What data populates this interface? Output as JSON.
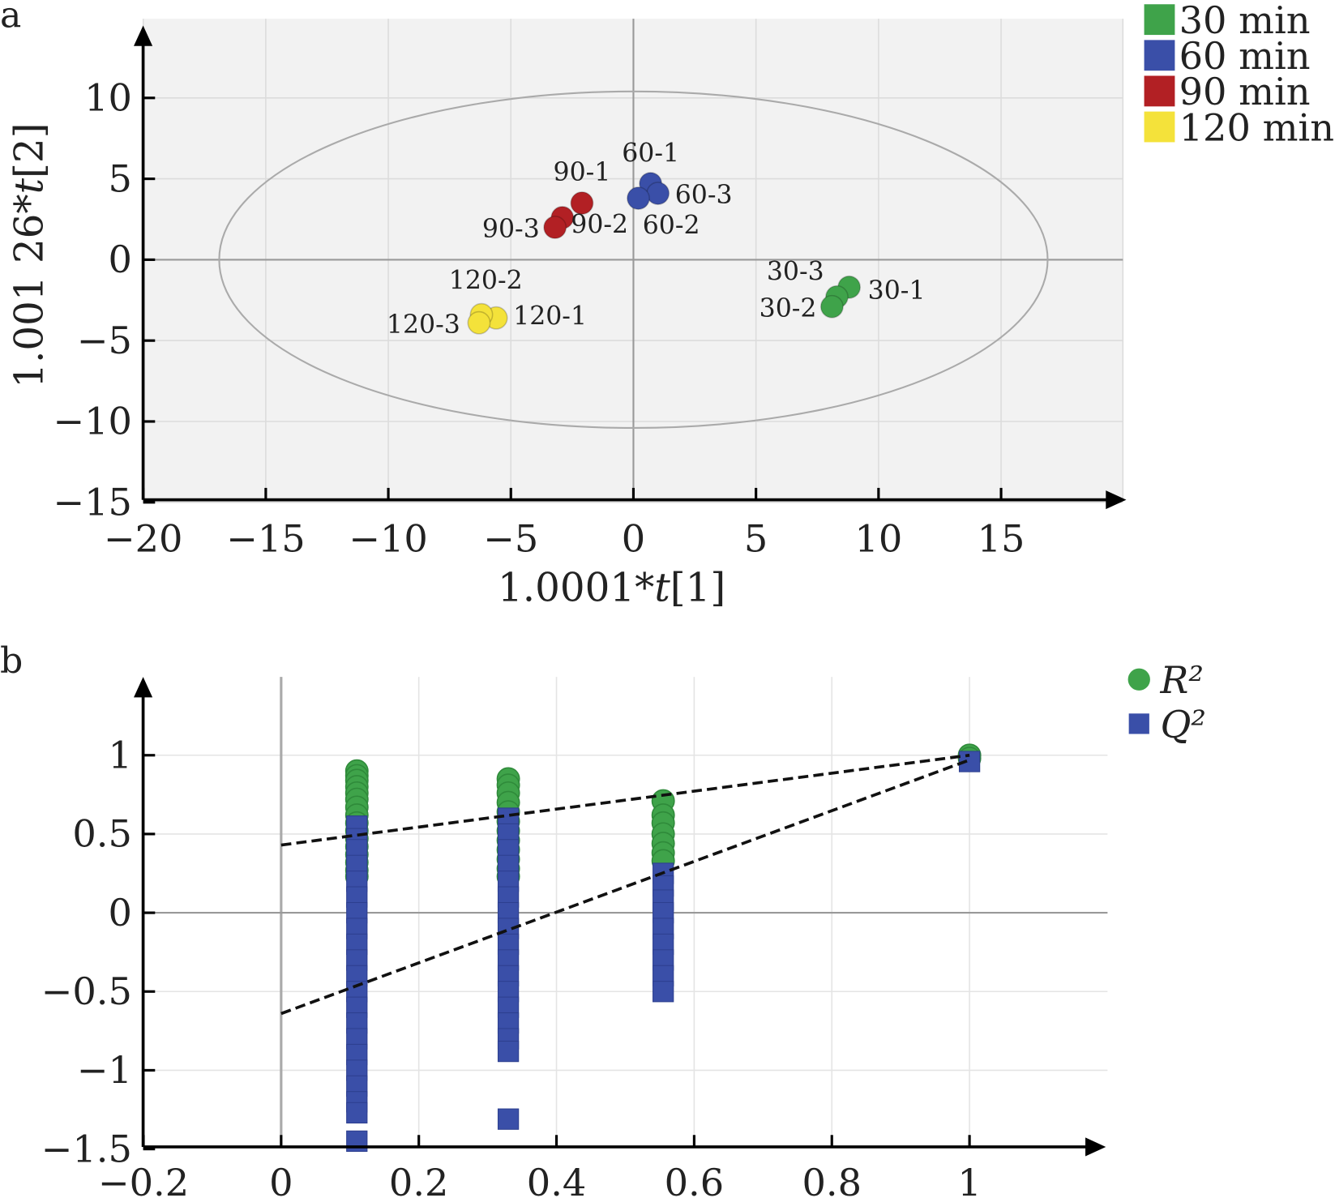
{
  "chart_data": [
    {
      "panel_label": "a",
      "type": "scatter",
      "xlabel_parts": [
        "1.0001*",
        "t",
        "[1]"
      ],
      "ylabel_parts": [
        "1.001 26*",
        "t",
        "[2]"
      ],
      "xlim": [
        -20,
        20
      ],
      "ylim": [
        -15,
        14
      ],
      "xticks": [
        -20,
        -15,
        -10,
        -5,
        0,
        5,
        10,
        15
      ],
      "yticks": [
        -15,
        -10,
        -5,
        0,
        5,
        10
      ],
      "grid": true,
      "background": "#f2f2f2",
      "legend_position": "top-right",
      "ellipse": {
        "center": [
          0,
          0
        ],
        "semi_axes": [
          16.9,
          10.4
        ]
      },
      "series": [
        {
          "name": "30 min",
          "color": "#3fa34a",
          "points": [
            {
              "label": "30-1",
              "x": 8.8,
              "y": -1.7
            },
            {
              "label": "30-3",
              "x": 8.3,
              "y": -2.3
            },
            {
              "label": "30-2",
              "x": 8.1,
              "y": -2.9
            }
          ]
        },
        {
          "name": "60 min",
          "color": "#3a4fa8",
          "points": [
            {
              "label": "60-1",
              "x": 0.7,
              "y": 4.7
            },
            {
              "label": "60-3",
              "x": 1.0,
              "y": 4.1
            },
            {
              "label": "60-2",
              "x": 0.2,
              "y": 3.8
            }
          ]
        },
        {
          "name": "90 min",
          "color": "#b22024",
          "points": [
            {
              "label": "90-1",
              "x": -2.1,
              "y": 3.5
            },
            {
              "label": "90-2",
              "x": -2.9,
              "y": 2.6
            },
            {
              "label": "90-3",
              "x": -3.2,
              "y": 2.0
            }
          ]
        },
        {
          "name": "120 min",
          "color": "#f4e23a",
          "points": [
            {
              "label": "120-1",
              "x": -5.6,
              "y": -3.6
            },
            {
              "label": "120-2",
              "x": -6.2,
              "y": -3.4
            },
            {
              "label": "120-3",
              "x": -6.3,
              "y": -3.9
            }
          ]
        }
      ]
    },
    {
      "panel_label": "b",
      "type": "scatter",
      "xlim": [
        -0.2,
        1.2
      ],
      "ylim": [
        -1.5,
        1.4
      ],
      "xticks": [
        -0.2,
        0,
        0.2,
        0.4,
        0.6,
        0.8,
        1
      ],
      "yticks": [
        -1.5,
        -1,
        -0.5,
        0,
        0.5,
        1
      ],
      "grid": true,
      "legend_position": "top-right",
      "series": [
        {
          "name": "R²",
          "color": "#3fa34a",
          "marker": "circle",
          "points": [
            [
              0.11,
              0.9
            ],
            [
              0.11,
              0.87
            ],
            [
              0.11,
              0.84
            ],
            [
              0.11,
              0.8
            ],
            [
              0.11,
              0.76
            ],
            [
              0.11,
              0.72
            ],
            [
              0.11,
              0.67
            ],
            [
              0.11,
              0.62
            ],
            [
              0.11,
              0.57
            ],
            [
              0.11,
              0.52
            ],
            [
              0.11,
              0.47
            ],
            [
              0.11,
              0.42
            ],
            [
              0.11,
              0.37
            ],
            [
              0.11,
              0.32
            ],
            [
              0.11,
              0.27
            ],
            [
              0.11,
              0.23
            ],
            [
              0.33,
              0.85
            ],
            [
              0.33,
              0.81
            ],
            [
              0.33,
              0.76
            ],
            [
              0.33,
              0.7
            ],
            [
              0.33,
              0.64
            ],
            [
              0.33,
              0.58
            ],
            [
              0.33,
              0.52
            ],
            [
              0.33,
              0.46
            ],
            [
              0.33,
              0.4
            ],
            [
              0.33,
              0.34
            ],
            [
              0.33,
              0.28
            ],
            [
              0.33,
              0.23
            ],
            [
              0.555,
              0.71
            ],
            [
              0.555,
              0.62
            ],
            [
              0.555,
              0.57
            ],
            [
              0.555,
              0.5
            ],
            [
              0.555,
              0.44
            ],
            [
              0.555,
              0.38
            ],
            [
              0.555,
              0.33
            ],
            [
              1,
              1.0
            ],
            [
              1,
              0.98
            ]
          ]
        },
        {
          "name": "Q²",
          "color": "#3a4fa8",
          "marker": "square",
          "points": [
            [
              0.11,
              0.55
            ],
            [
              0.11,
              0.47
            ],
            [
              0.11,
              0.4
            ],
            [
              0.11,
              0.3
            ],
            [
              0.11,
              0.2
            ],
            [
              0.11,
              0.1
            ],
            [
              0.11,
              0.0
            ],
            [
              0.11,
              -0.1
            ],
            [
              0.11,
              -0.2
            ],
            [
              0.11,
              -0.3
            ],
            [
              0.11,
              -0.4
            ],
            [
              0.11,
              -0.5
            ],
            [
              0.11,
              -0.6
            ],
            [
              0.11,
              -0.7
            ],
            [
              0.11,
              -0.8
            ],
            [
              0.11,
              -0.9
            ],
            [
              0.11,
              -1.0
            ],
            [
              0.11,
              -1.1
            ],
            [
              0.11,
              -1.2
            ],
            [
              0.11,
              -1.27
            ],
            [
              0.11,
              -1.45
            ],
            [
              0.33,
              0.6
            ],
            [
              0.33,
              0.5
            ],
            [
              0.33,
              0.4
            ],
            [
              0.33,
              0.3
            ],
            [
              0.33,
              0.2
            ],
            [
              0.33,
              0.1
            ],
            [
              0.33,
              0.0
            ],
            [
              0.33,
              -0.1
            ],
            [
              0.33,
              -0.2
            ],
            [
              0.33,
              -0.3
            ],
            [
              0.33,
              -0.4
            ],
            [
              0.33,
              -0.5
            ],
            [
              0.33,
              -0.6
            ],
            [
              0.33,
              -0.7
            ],
            [
              0.33,
              -0.8
            ],
            [
              0.33,
              -0.88
            ],
            [
              0.33,
              -1.31
            ],
            [
              0.555,
              0.25
            ],
            [
              0.555,
              0.17
            ],
            [
              0.555,
              0.08
            ],
            [
              0.555,
              0.0
            ],
            [
              0.555,
              -0.1
            ],
            [
              0.555,
              -0.2
            ],
            [
              0.555,
              -0.3
            ],
            [
              0.555,
              -0.4
            ],
            [
              0.555,
              -0.5
            ],
            [
              1,
              0.96
            ]
          ]
        }
      ],
      "regression_lines": [
        {
          "series": "R²",
          "from": [
            0,
            0.43
          ],
          "to": [
            1,
            1.0
          ]
        },
        {
          "series": "Q²",
          "from": [
            0,
            -0.64
          ],
          "to": [
            1,
            0.97
          ]
        }
      ]
    }
  ]
}
